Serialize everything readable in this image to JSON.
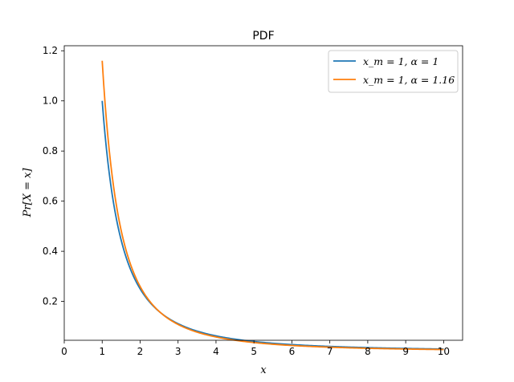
{
  "chart_data": {
    "type": "line",
    "title": "PDF",
    "xlabel": "x",
    "ylabel": "Pr[X = x]",
    "xlim": [
      0,
      10.5
    ],
    "ylim": [
      0.045,
      1.22
    ],
    "xticks": [
      0,
      1,
      2,
      3,
      4,
      5,
      6,
      7,
      8,
      9,
      10
    ],
    "xtick_labels": [
      "0",
      "1",
      "2",
      "3",
      "4",
      "5",
      "6",
      "7",
      "8",
      "9",
      "10"
    ],
    "yticks": [
      0.2,
      0.4,
      0.6,
      0.8,
      1.0,
      1.2
    ],
    "ytick_labels": [
      "0.2",
      "0.4",
      "0.6",
      "0.8",
      "1.0",
      "1.2"
    ],
    "grid": false,
    "legend_position": "top-right",
    "series": [
      {
        "name": "x_m = 1, α = 1",
        "color": "#1f77b4",
        "x": [
          1.0,
          1.25,
          1.5,
          2.0,
          2.5,
          3.0,
          4.0,
          5.0,
          6.0,
          7.0,
          8.0,
          9.0,
          10.0
        ],
        "values": [
          1.0,
          0.64,
          0.444,
          0.25,
          0.16,
          0.111,
          0.0625,
          0.04,
          0.0278,
          0.0204,
          0.0156,
          0.0123,
          0.01
        ]
      },
      {
        "name": "x_m = 1, α = 1.16",
        "color": "#ff7f0e",
        "x": [
          1.0,
          1.25,
          1.5,
          2.0,
          2.5,
          3.0,
          4.0,
          5.0,
          6.0,
          7.0,
          8.0,
          9.0,
          10.0
        ],
        "values": [
          1.16,
          0.716,
          0.486,
          0.261,
          0.16,
          0.108,
          0.056,
          0.0339,
          0.0224,
          0.0159,
          0.0117,
          0.0089,
          0.007
        ]
      }
    ]
  }
}
